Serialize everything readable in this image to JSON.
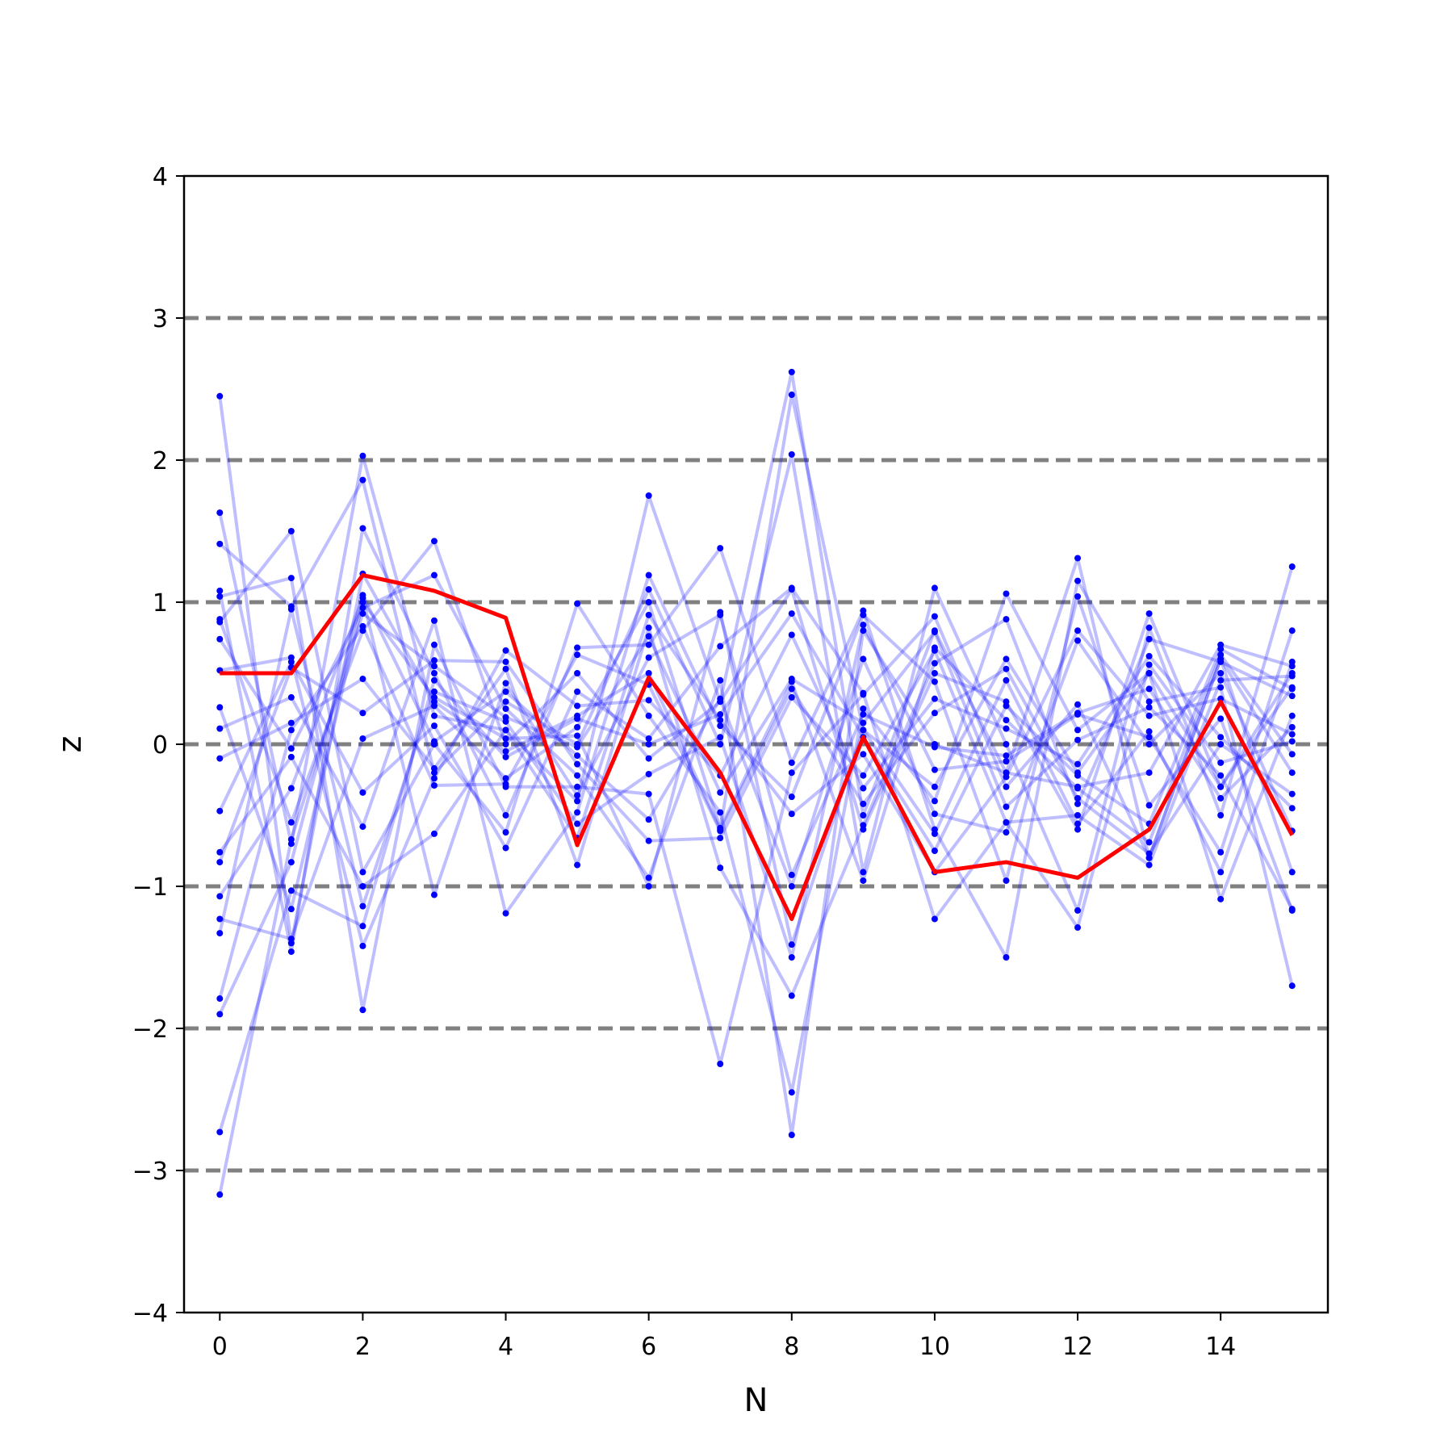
{
  "chart_data": {
    "type": "line",
    "title": "",
    "xlabel": "N",
    "ylabel": "z",
    "xlim": [
      -0.5,
      15.5
    ],
    "ylim": [
      -4,
      4
    ],
    "xticks": [
      0,
      2,
      4,
      6,
      8,
      10,
      12,
      14
    ],
    "xtick_labels": [
      "0",
      "2",
      "4",
      "6",
      "8",
      "10",
      "12",
      "14"
    ],
    "yticks": [
      -4,
      -3,
      -2,
      -1,
      0,
      1,
      2,
      3,
      4
    ],
    "ytick_labels": [
      "−4",
      "−3",
      "−2",
      "−1",
      "0",
      "1",
      "2",
      "3",
      "4"
    ],
    "reference_lines": [
      -3,
      -2,
      -1,
      0,
      1,
      2,
      3
    ],
    "grid": false,
    "legend": "none",
    "colors": {
      "samples": "#0000ff",
      "highlight": "#ff0000",
      "reference": "#808080"
    },
    "x": [
      0,
      1,
      2,
      3,
      4,
      5,
      6,
      7,
      8,
      9,
      10,
      11,
      12,
      13,
      14,
      15
    ],
    "highlight_series": {
      "values": [
        0.5,
        0.5,
        1.19,
        1.08,
        0.89,
        -0.71,
        0.47,
        -0.2,
        -1.23,
        0.05,
        -0.9,
        -0.83,
        -0.94,
        -0.6,
        0.3,
        -0.64
      ]
    },
    "series": [
      {
        "values": [
          2.45,
          -1.4,
          1.2,
          0.3,
          -0.05,
          0.2,
          0.5,
          -0.6,
          2.46,
          0.1,
          -0.3,
          0.6,
          -0.2,
          0.5,
          -0.3,
          0.4
        ]
      },
      {
        "values": [
          1.63,
          -0.7,
          2.03,
          0.2,
          0.1,
          -0.4,
          1.75,
          0.3,
          2.62,
          -0.5,
          0.8,
          -0.2,
          1.31,
          -0.8,
          0.6,
          -0.2
        ]
      },
      {
        "values": [
          1.41,
          0.97,
          1.86,
          -0.2,
          0.3,
          0.0,
          1.09,
          0.0,
          2.04,
          -0.9,
          1.1,
          0.0,
          -1.17,
          0.82,
          -0.5,
          1.25
        ]
      },
      {
        "values": [
          1.08,
          -1.46,
          1.52,
          0.5,
          -0.5,
          0.68,
          0.7,
          1.38,
          -0.13,
          0.94,
          -0.6,
          -1.5,
          1.15,
          0.3,
          0.4,
          -1.7
        ]
      },
      {
        "values": [
          1.04,
          1.17,
          -1.87,
          0.7,
          -0.3,
          -0.3,
          -0.35,
          -2.25,
          -0.2,
          0.35,
          0.9,
          -0.3,
          0.28,
          -0.8,
          0.6,
          -0.9
        ]
      },
      {
        "values": [
          0.88,
          -0.55,
          0.8,
          1.43,
          0.0,
          0.5,
          -0.1,
          0.3,
          1.09,
          -0.6,
          0.5,
          0.3,
          -0.6,
          0.92,
          -0.3,
          0.5
        ]
      },
      {
        "values": [
          0.86,
          1.5,
          -0.9,
          0.0,
          -0.62,
          0.99,
          0.2,
          -0.48,
          -2.45,
          0.25,
          -0.4,
          1.06,
          0.1,
          0.5,
          -1.09,
          0.2
        ]
      },
      {
        "values": [
          0.74,
          -0.03,
          0.96,
          1.19,
          0.25,
          -0.22,
          -0.94,
          0.45,
          -2.75,
          0.8,
          0.0,
          -0.2,
          -0.3,
          -0.2,
          0.7,
          0.55
        ]
      },
      {
        "values": [
          0.52,
          0.61,
          -1.42,
          -0.24,
          0.66,
          0.27,
          0.31,
          -0.22,
          0.77,
          -0.31,
          0.32,
          0.11,
          -0.14,
          0.62,
          0.05,
          -0.45
        ]
      },
      {
        "values": [
          0.26,
          -1.16,
          1.0,
          0.33,
          0.04,
          0.06,
          -1.0,
          0.93,
          -1.41,
          0.1,
          -0.63,
          0.45,
          -0.56,
          0.09,
          -0.9,
          0.58
        ]
      },
      {
        "values": [
          0.11,
          0.33,
          -0.58,
          0.87,
          -1.19,
          -0.48,
          1.19,
          0.13,
          -0.37,
          0.91,
          0.44,
          -0.96,
          1.04,
          -0.43,
          0.18,
          -1.17
        ]
      },
      {
        "values": [
          -0.1,
          0.15,
          0.46,
          -0.17,
          0.53,
          -0.85,
          0.82,
          -0.87,
          -1.77,
          -0.57,
          0.57,
          0.88,
          -0.42,
          0.74,
          0.58,
          0.34
        ]
      },
      {
        "values": [
          -0.47,
          0.58,
          -0.34,
          0.13,
          -0.73,
          0.37,
          0.04,
          0.69,
          1.1,
          0.36,
          -1.23,
          -0.55,
          -1.29,
          0.56,
          -0.13,
          0.02
        ]
      },
      {
        "values": [
          -0.76,
          -0.09,
          -1.0,
          -0.63,
          0.1,
          -0.66,
          0.91,
          0.17,
          -0.49,
          -0.07,
          -0.9,
          -0.23,
          0.8,
          0.2,
          0.32,
          0.07
        ]
      },
      {
        "values": [
          -0.83,
          0.54,
          0.22,
          0.59,
          0.58,
          -0.14,
          -0.68,
          -0.66,
          0.33,
          -0.22,
          0.66,
          -0.55,
          -0.5,
          -0.85,
          0.45,
          0.48
        ]
      },
      {
        "values": [
          -1.07,
          -0.31,
          1.03,
          -1.06,
          0.43,
          -0.36,
          0.61,
          0.91,
          -0.92,
          0.21,
          -0.02,
          -0.08,
          0.22,
          0.39,
          -0.38,
          0.12
        ]
      },
      {
        "values": [
          -1.23,
          -1.37,
          0.04,
          0.27,
          -0.24,
          0.12,
          1.0,
          -0.59,
          0.44,
          -0.96,
          0.68,
          0.17,
          -0.31,
          -0.69,
          0.63,
          -0.07
        ]
      },
      {
        "values": [
          -1.33,
          0.95,
          -1.14,
          0.37,
          0.16,
          -0.56,
          -0.21,
          0.05,
          -1.5,
          0.84,
          -0.18,
          -0.12,
          0.21,
          0.05,
          -0.76,
          0.8
        ]
      },
      {
        "values": [
          -1.79,
          0.1,
          0.83,
          -0.29,
          -0.28,
          0.63,
          0.42,
          -0.61,
          0.39,
          -0.42,
          0.22,
          0.53,
          -0.38,
          -0.77,
          0.0,
          -0.35
        ]
      },
      {
        "values": [
          -1.9,
          -0.83,
          1.05,
          0.02,
          0.37,
          -0.08,
          -0.53,
          0.32,
          -1.0,
          0.6,
          -0.49,
          -0.62,
          0.73,
          0.0,
          0.5,
          -0.61
        ]
      },
      {
        "values": [
          -2.73,
          -1.03,
          -1.28,
          0.45,
          -0.09,
          0.18,
          0.0,
          0.21,
          0.92,
          0.05,
          -0.75,
          0.27,
          -0.22,
          -0.56,
          0.67,
          0.39
        ]
      },
      {
        "values": [
          -3.17,
          -0.67,
          0.92,
          0.55,
          0.19,
          -0.02,
          0.76,
          -0.34,
          0.46,
          0.15,
          0.79,
          -0.44,
          0.03,
          0.26,
          -0.22,
          -1.16
        ]
      }
    ]
  }
}
